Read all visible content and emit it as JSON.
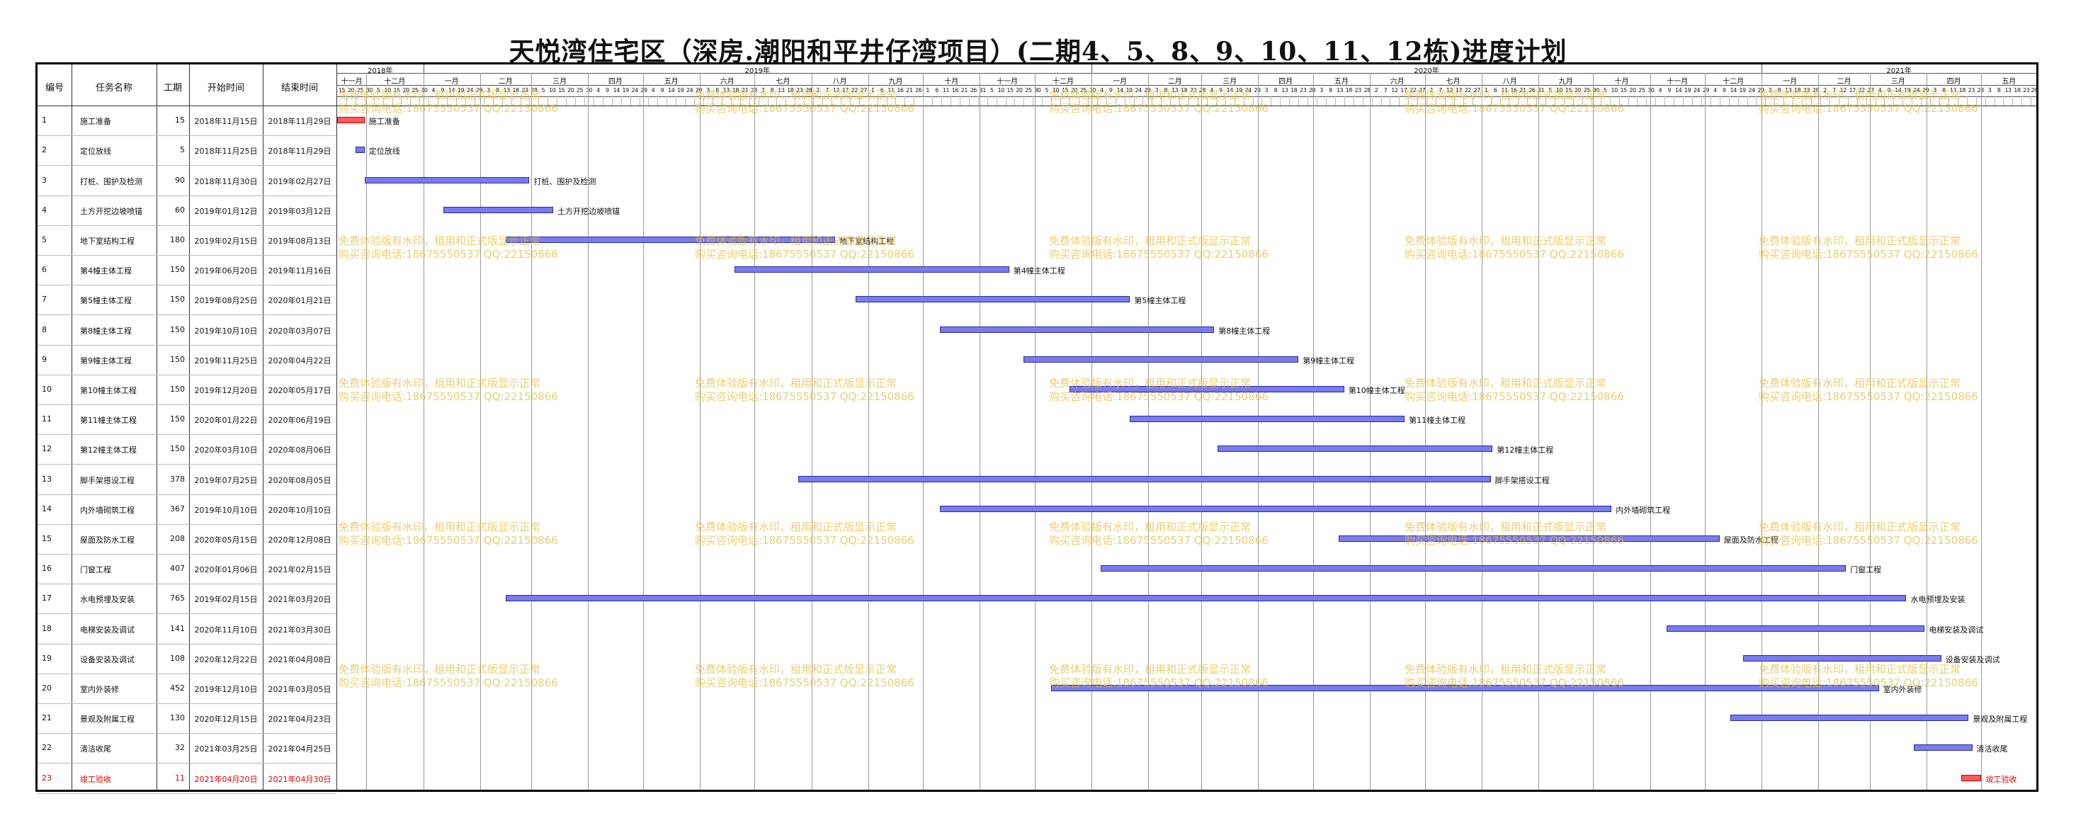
{
  "title": "天悦湾住宅区（深房.潮阳和平井仔湾项目）(二期4、5、8、9、10、11、12栋)进度计划",
  "columns": [
    "编号",
    "任务名称",
    "工期",
    "开始时间",
    "结束时间"
  ],
  "timeline": {
    "years": [
      "2018年",
      "2019年",
      "2020年",
      "2021年"
    ],
    "months": [
      "十一月",
      "十二月",
      "一月",
      "二月",
      "三月",
      "四月",
      "五月",
      "六月",
      "七月",
      "八月",
      "九月",
      "十月",
      "十一月",
      "十二月",
      "一月",
      "二月",
      "三月",
      "四月",
      "五月",
      "六月",
      "七月",
      "八月",
      "九月",
      "十月",
      "十一月",
      "十二月",
      "一月",
      "二月",
      "三月",
      "四月",
      "五月"
    ]
  },
  "colors": {
    "bar": "#7b7bf0",
    "bar_border": "#2a2a9a",
    "milestone": "#ff5a5a",
    "watermark": "#e6c040"
  },
  "watermark": {
    "line1": "免费体验版有水印，租用和正式版显示正常",
    "line2": "购买咨询电话:18675550537 QQ:22150866"
  },
  "chart_data": {
    "type": "gantt",
    "title": "天悦湾住宅区（深房.潮阳和平井仔湾项目）(二期4、5、8、9、10、11、12栋)进度计划",
    "x_range": [
      "2018-11-15",
      "2021-05-31"
    ],
    "tasks": [
      {
        "id": "1",
        "name": "施工准备",
        "days": "15",
        "start": "2018年11月15日",
        "end": "2018年11月29日",
        "s": "2018-11-15",
        "e": "2018-11-29",
        "milestone": true
      },
      {
        "id": "2",
        "name": "定位放线",
        "days": "5",
        "start": "2018年11月25日",
        "end": "2018年11月29日",
        "s": "2018-11-25",
        "e": "2018-11-29"
      },
      {
        "id": "3",
        "name": "打桩、围护及检测",
        "days": "90",
        "start": "2018年11月30日",
        "end": "2019年02月27日",
        "s": "2018-11-30",
        "e": "2019-02-27"
      },
      {
        "id": "4",
        "name": "土方开挖边坡喷锚",
        "days": "60",
        "start": "2019年01月12日",
        "end": "2019年03月12日",
        "s": "2019-01-12",
        "e": "2019-03-12"
      },
      {
        "id": "5",
        "name": "地下室结构工程",
        "days": "180",
        "start": "2019年02月15日",
        "end": "2019年08月13日",
        "s": "2019-02-15",
        "e": "2019-08-13"
      },
      {
        "id": "6",
        "name": "第4幢主体工程",
        "days": "150",
        "start": "2019年06月20日",
        "end": "2019年11月16日",
        "s": "2019-06-20",
        "e": "2019-11-16"
      },
      {
        "id": "7",
        "name": "第5幢主体工程",
        "days": "150",
        "start": "2019年08月25日",
        "end": "2020年01月21日",
        "s": "2019-08-25",
        "e": "2020-01-21"
      },
      {
        "id": "8",
        "name": "第8幢主体工程",
        "days": "150",
        "start": "2019年10月10日",
        "end": "2020年03月07日",
        "s": "2019-10-10",
        "e": "2020-03-07"
      },
      {
        "id": "9",
        "name": "第9幢主体工程",
        "days": "150",
        "start": "2019年11月25日",
        "end": "2020年04月22日",
        "s": "2019-11-25",
        "e": "2020-04-22"
      },
      {
        "id": "10",
        "name": "第10幢主体工程",
        "days": "150",
        "start": "2019年12月20日",
        "end": "2020年05月17日",
        "s": "2019-12-20",
        "e": "2020-05-17"
      },
      {
        "id": "11",
        "name": "第11幢主体工程",
        "days": "150",
        "start": "2020年01月22日",
        "end": "2020年06月19日",
        "s": "2020-01-22",
        "e": "2020-06-19"
      },
      {
        "id": "12",
        "name": "第12幢主体工程",
        "days": "150",
        "start": "2020年03月10日",
        "end": "2020年08月06日",
        "s": "2020-03-10",
        "e": "2020-08-06"
      },
      {
        "id": "13",
        "name": "脚手架搭设工程",
        "days": "378",
        "start": "2019年07月25日",
        "end": "2020年08月05日",
        "s": "2019-07-25",
        "e": "2020-08-05"
      },
      {
        "id": "14",
        "name": "内外墙砌筑工程",
        "days": "367",
        "start": "2019年10月10日",
        "end": "2020年10月10日",
        "s": "2019-10-10",
        "e": "2020-10-10"
      },
      {
        "id": "15",
        "name": "屋面及防水工程",
        "days": "208",
        "start": "2020年05月15日",
        "end": "2020年12月08日",
        "s": "2020-05-15",
        "e": "2020-12-08"
      },
      {
        "id": "16",
        "name": "门窗工程",
        "days": "407",
        "start": "2020年01月06日",
        "end": "2021年02月15日",
        "s": "2020-01-06",
        "e": "2021-02-15"
      },
      {
        "id": "17",
        "name": "水电预埋及安装",
        "days": "765",
        "start": "2019年02月15日",
        "end": "2021年03月20日",
        "s": "2019-02-15",
        "e": "2021-03-20"
      },
      {
        "id": "18",
        "name": "电梯安装及调试",
        "days": "141",
        "start": "2020年11月10日",
        "end": "2021年03月30日",
        "s": "2020-11-10",
        "e": "2021-03-30"
      },
      {
        "id": "19",
        "name": "设备安装及调试",
        "days": "108",
        "start": "2020年12月22日",
        "end": "2021年04月08日",
        "s": "2020-12-22",
        "e": "2021-04-08"
      },
      {
        "id": "20",
        "name": "室内外装修",
        "days": "452",
        "start": "2019年12月10日",
        "end": "2021年03月05日",
        "s": "2019-12-10",
        "e": "2021-03-05"
      },
      {
        "id": "21",
        "name": "景观及附属工程",
        "days": "130",
        "start": "2020年12月15日",
        "end": "2021年04月23日",
        "s": "2020-12-15",
        "e": "2021-04-23"
      },
      {
        "id": "22",
        "name": "清洁收尾",
        "days": "32",
        "start": "2021年03月25日",
        "end": "2021年04月25日",
        "s": "2021-03-25",
        "e": "2021-04-25"
      },
      {
        "id": "23",
        "name": "竣工验收",
        "days": "11",
        "start": "2021年04月20日",
        "end": "2021年04月30日",
        "s": "2021-04-20",
        "e": "2021-04-30",
        "milestone": true,
        "highlight": true
      }
    ]
  }
}
